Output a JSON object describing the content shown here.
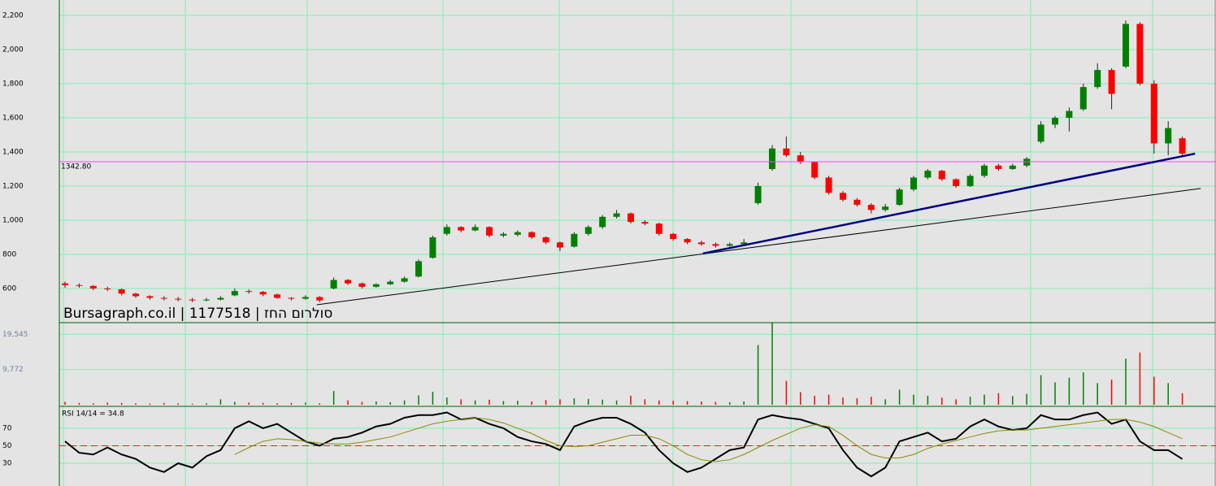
{
  "chart_data": [
    {
      "type": "candlestick",
      "annotation": "Bursagraph.co.il | 1177518 | סולרום החז",
      "ylim": [
        400,
        2290
      ],
      "yticks": [
        600,
        800,
        {
          "value": 1000,
          "label": "1,000"
        },
        {
          "value": 1200,
          "label": "1,200"
        },
        {
          "value": 1400,
          "label": "1,400"
        },
        {
          "value": 1600,
          "label": "1,600"
        },
        {
          "value": 1800,
          "label": "1,800"
        },
        {
          "value": 2000,
          "label": "2,000"
        },
        {
          "value": 2200,
          "label": "2,200"
        }
      ],
      "hline": {
        "value": 1342.8,
        "label": "1342.80",
        "color": "#ff40ff"
      },
      "colors": {
        "up": "#008000",
        "down": "#ff0000"
      },
      "trendlines": [
        {
          "x": [
            17.8,
            80.3
          ],
          "y": [
            505,
            1186
          ],
          "color": "#000000",
          "width": 1
        },
        {
          "x": [
            45.1,
            79.9
          ],
          "y": [
            805,
            1390
          ],
          "color": "#000080",
          "width": 2.5
        }
      ],
      "candles": [
        [
          630,
          640,
          605,
          620
        ],
        [
          620,
          630,
          605,
          615
        ],
        [
          615,
          620,
          590,
          600
        ],
        [
          600,
          610,
          585,
          595
        ],
        [
          595,
          600,
          560,
          570
        ],
        [
          570,
          575,
          545,
          555
        ],
        [
          555,
          560,
          535,
          545
        ],
        [
          545,
          555,
          530,
          540
        ],
        [
          540,
          550,
          525,
          535
        ],
        [
          535,
          545,
          520,
          530
        ],
        [
          530,
          545,
          525,
          535
        ],
        [
          535,
          555,
          530,
          545
        ],
        [
          560,
          600,
          555,
          585
        ],
        [
          585,
          595,
          570,
          580
        ],
        [
          580,
          585,
          555,
          565
        ],
        [
          565,
          570,
          540,
          545
        ],
        [
          545,
          550,
          530,
          540
        ],
        [
          540,
          560,
          535,
          550
        ],
        [
          550,
          555,
          520,
          530
        ],
        [
          600,
          665,
          595,
          650
        ],
        [
          650,
          655,
          620,
          630
        ],
        [
          630,
          635,
          600,
          610
        ],
        [
          610,
          630,
          605,
          625
        ],
        [
          625,
          650,
          620,
          640
        ],
        [
          640,
          670,
          635,
          660
        ],
        [
          670,
          770,
          665,
          760
        ],
        [
          780,
          910,
          775,
          900
        ],
        [
          920,
          975,
          910,
          960
        ],
        [
          960,
          965,
          930,
          940
        ],
        [
          940,
          975,
          935,
          960
        ],
        [
          960,
          965,
          900,
          910
        ],
        [
          910,
          930,
          900,
          920
        ],
        [
          915,
          940,
          905,
          930
        ],
        [
          930,
          935,
          890,
          900
        ],
        [
          900,
          905,
          860,
          870
        ],
        [
          870,
          875,
          820,
          840
        ],
        [
          845,
          930,
          840,
          920
        ],
        [
          920,
          970,
          910,
          960
        ],
        [
          960,
          1030,
          950,
          1020
        ],
        [
          1020,
          1060,
          1010,
          1040
        ],
        [
          1040,
          1045,
          980,
          990
        ],
        [
          990,
          1000,
          970,
          980
        ],
        [
          980,
          985,
          910,
          920
        ],
        [
          920,
          925,
          880,
          890
        ],
        [
          890,
          895,
          860,
          870
        ],
        [
          870,
          880,
          850,
          860
        ],
        [
          860,
          870,
          840,
          850
        ],
        [
          850,
          870,
          845,
          860
        ],
        [
          860,
          890,
          855,
          870
        ],
        [
          1100,
          1220,
          1090,
          1200
        ],
        [
          1300,
          1440,
          1290,
          1420
        ],
        [
          1420,
          1490,
          1370,
          1380
        ],
        [
          1380,
          1400,
          1330,
          1340
        ],
        [
          1340,
          1345,
          1240,
          1250
        ],
        [
          1250,
          1260,
          1150,
          1160
        ],
        [
          1160,
          1170,
          1110,
          1120
        ],
        [
          1120,
          1130,
          1080,
          1090
        ],
        [
          1090,
          1100,
          1040,
          1060
        ],
        [
          1060,
          1095,
          1050,
          1080
        ],
        [
          1090,
          1190,
          1085,
          1180
        ],
        [
          1180,
          1260,
          1170,
          1250
        ],
        [
          1250,
          1300,
          1240,
          1290
        ],
        [
          1290,
          1295,
          1230,
          1240
        ],
        [
          1240,
          1245,
          1190,
          1200
        ],
        [
          1200,
          1270,
          1195,
          1260
        ],
        [
          1260,
          1330,
          1250,
          1320
        ],
        [
          1320,
          1330,
          1290,
          1300
        ],
        [
          1300,
          1330,
          1295,
          1320
        ],
        [
          1320,
          1370,
          1310,
          1360
        ],
        [
          1460,
          1580,
          1450,
          1560
        ],
        [
          1560,
          1610,
          1540,
          1600
        ],
        [
          1600,
          1660,
          1520,
          1640
        ],
        [
          1650,
          1800,
          1640,
          1780
        ],
        [
          1780,
          1920,
          1770,
          1880
        ],
        [
          1880,
          1890,
          1650,
          1740
        ],
        [
          1900,
          2170,
          1890,
          2150
        ],
        [
          2150,
          2160,
          1790,
          1800
        ],
        [
          1800,
          1820,
          1390,
          1450
        ],
        [
          1450,
          1580,
          1380,
          1540
        ],
        [
          1480,
          1490,
          1370,
          1390
        ]
      ]
    },
    {
      "type": "bar",
      "ylim": [
        0,
        22800
      ],
      "yticks": [
        {
          "value": 9772,
          "label": "9,772"
        },
        {
          "value": 19545,
          "label": "19,545"
        }
      ],
      "values": [
        800,
        500,
        400,
        600,
        500,
        400,
        300,
        500,
        400,
        300,
        400,
        1500,
        800,
        600,
        500,
        400,
        500,
        600,
        400,
        3800,
        1200,
        800,
        900,
        700,
        1200,
        2600,
        3600,
        2000,
        1500,
        1200,
        1400,
        1000,
        1100,
        900,
        1300,
        1500,
        1800,
        1600,
        1400,
        1200,
        2500,
        1500,
        1200,
        1100,
        1000,
        900,
        800,
        700,
        900,
        16600,
        22700,
        6600,
        3500,
        2500,
        2800,
        2000,
        1800,
        2200,
        1500,
        4200,
        2800,
        2500,
        2000,
        1500,
        2200,
        2800,
        3200,
        2400,
        3000,
        8200,
        6200,
        7500,
        9000,
        6000,
        7000,
        12800,
        14500,
        7800,
        6000,
        3200
      ]
    },
    {
      "type": "line",
      "title": "RSI 14/14 = 34.8",
      "ylim": [
        4,
        95
      ],
      "yticks": [
        30,
        50,
        70
      ],
      "hline": {
        "value": 50,
        "color": "#e02020"
      },
      "series": [
        {
          "color": "#000000",
          "values": [
            55,
            42,
            40,
            48,
            40,
            35,
            25,
            20,
            30,
            25,
            38,
            45,
            70,
            78,
            70,
            75,
            65,
            55,
            50,
            58,
            60,
            65,
            72,
            75,
            82,
            85,
            85,
            88,
            80,
            82,
            75,
            70,
            60,
            55,
            52,
            45,
            72,
            78,
            82,
            82,
            75,
            65,
            45,
            30,
            20,
            25,
            35,
            45,
            48,
            80,
            85,
            82,
            80,
            75,
            70,
            45,
            25,
            15,
            25,
            55,
            60,
            65,
            55,
            58,
            72,
            80,
            72,
            68,
            70,
            85,
            80,
            80,
            85,
            88,
            75,
            80,
            55,
            45,
            45,
            34.8
          ]
        },
        {
          "color": "#8a8a00",
          "values": [
            null,
            null,
            null,
            null,
            null,
            null,
            null,
            null,
            null,
            null,
            null,
            null,
            40,
            48,
            55,
            58,
            57,
            55,
            53,
            52,
            52,
            54,
            57,
            60,
            65,
            70,
            75,
            78,
            80,
            82,
            80,
            76,
            70,
            64,
            56,
            50,
            49,
            50,
            54,
            58,
            62,
            62,
            58,
            50,
            40,
            34,
            32,
            34,
            40,
            48,
            56,
            63,
            70,
            74,
            72,
            62,
            50,
            40,
            36,
            36,
            40,
            47,
            52,
            56,
            60,
            64,
            67,
            68,
            68,
            70,
            72,
            74,
            76,
            78,
            80,
            80,
            77,
            72,
            65,
            58
          ]
        }
      ]
    }
  ]
}
